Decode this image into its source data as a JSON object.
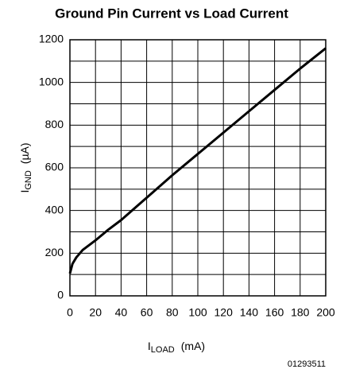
{
  "chart_data": {
    "type": "line",
    "title": "Ground Pin Current vs Load Current",
    "x_label": {
      "symbol": "I",
      "subscript": "LOAD",
      "unit": "(mA)"
    },
    "y_label": {
      "symbol": "I",
      "subscript": "GND",
      "unit": "(µA)"
    },
    "footnote": "01293511",
    "series": [
      {
        "name": "IGND",
        "color": "#000000",
        "x": [
          0,
          2,
          5,
          10,
          20,
          30,
          40,
          60,
          80,
          100,
          120,
          140,
          160,
          180,
          200
        ],
        "values": [
          105,
          150,
          180,
          215,
          260,
          310,
          355,
          460,
          565,
          665,
          765,
          865,
          965,
          1065,
          1160
        ]
      }
    ],
    "xlim": [
      0,
      200
    ],
    "xticks": [
      0,
      20,
      40,
      60,
      80,
      100,
      120,
      140,
      160,
      180,
      200
    ],
    "ylim": [
      0,
      1200
    ],
    "yticks": [
      0,
      200,
      400,
      600,
      800,
      1000,
      1200
    ],
    "y_minor_grid": [
      100,
      300,
      500,
      700,
      900,
      1100
    ],
    "grid": true
  }
}
